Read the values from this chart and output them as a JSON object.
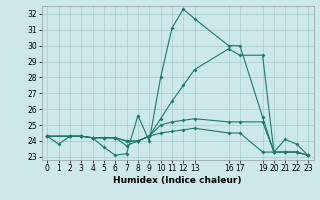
{
  "xlabel": "Humidex (Indice chaleur)",
  "bg_color": "#cce8e8",
  "grid_color": "#aacccc",
  "line_color": "#1a7a6e",
  "xlim": [
    -0.5,
    23.5
  ],
  "ylim": [
    22.8,
    32.5
  ],
  "yticks": [
    23,
    24,
    25,
    26,
    27,
    28,
    29,
    30,
    31,
    32
  ],
  "xtick_positions": [
    0,
    1,
    2,
    3,
    4,
    5,
    6,
    7,
    8,
    9,
    10,
    11,
    12,
    13,
    16,
    17,
    19,
    20,
    21,
    22,
    23
  ],
  "xtick_labels": [
    "0",
    "1",
    "2",
    "3",
    "4",
    "5",
    "6",
    "7",
    "8",
    "9",
    "10",
    "11",
    "12",
    "13",
    "16",
    "17",
    "19",
    "20",
    "21",
    "22",
    "23"
  ],
  "line1": {
    "x": [
      0,
      1,
      2,
      3,
      4,
      5,
      6,
      7,
      8,
      9,
      10,
      11,
      12,
      13,
      16,
      17,
      19,
      20,
      21,
      22,
      23
    ],
    "y": [
      24.3,
      23.8,
      24.3,
      24.3,
      24.2,
      23.6,
      23.1,
      23.2,
      25.6,
      24.0,
      28.0,
      31.1,
      32.3,
      31.7,
      30.0,
      30.0,
      25.5,
      23.3,
      24.1,
      23.8,
      23.1
    ]
  },
  "line2": {
    "x": [
      0,
      2,
      3,
      4,
      5,
      6,
      7,
      8,
      9,
      10,
      11,
      12,
      13,
      16,
      17,
      19,
      20,
      21,
      22,
      23
    ],
    "y": [
      24.3,
      24.3,
      24.3,
      24.2,
      24.2,
      24.2,
      24.0,
      24.0,
      24.3,
      25.0,
      25.2,
      25.3,
      25.4,
      25.2,
      25.2,
      25.2,
      23.3,
      23.3,
      23.3,
      23.1
    ]
  },
  "line3": {
    "x": [
      0,
      2,
      3,
      4,
      5,
      6,
      7,
      8,
      9,
      10,
      11,
      12,
      13,
      16,
      17,
      19,
      20,
      21,
      22,
      23
    ],
    "y": [
      24.3,
      24.3,
      24.3,
      24.2,
      24.2,
      24.2,
      24.0,
      24.0,
      24.3,
      25.4,
      26.5,
      27.5,
      28.5,
      29.8,
      29.4,
      29.4,
      23.3,
      23.3,
      23.3,
      23.1
    ]
  },
  "line4": {
    "x": [
      0,
      2,
      3,
      4,
      5,
      6,
      7,
      8,
      9,
      10,
      11,
      12,
      13,
      16,
      17,
      19,
      20,
      21,
      22,
      23
    ],
    "y": [
      24.3,
      24.3,
      24.3,
      24.2,
      24.2,
      24.2,
      23.7,
      24.0,
      24.3,
      24.5,
      24.6,
      24.7,
      24.8,
      24.5,
      24.5,
      23.3,
      23.3,
      23.3,
      23.3,
      23.1
    ]
  }
}
